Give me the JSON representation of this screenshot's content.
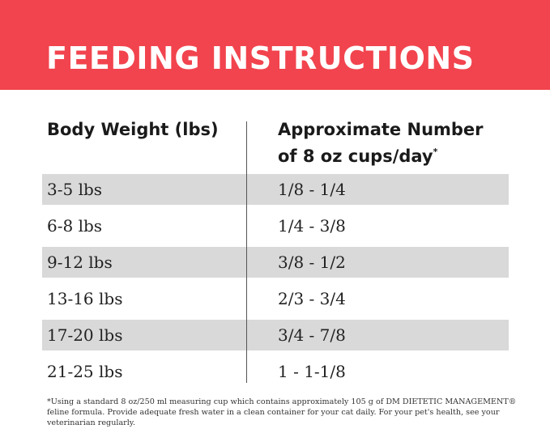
{
  "header": {
    "title": "FEEDING INSTRUCTIONS"
  },
  "table": {
    "columns": [
      {
        "lines": [
          "Body Weight (lbs)"
        ]
      },
      {
        "lines": [
          "Approximate Number",
          "of 8 oz cups/day"
        ],
        "note_mark": "*"
      }
    ],
    "rows": [
      [
        "3-5 lbs",
        "1/8 - 1/4"
      ],
      [
        "6-8 lbs",
        "1/4 - 3/8"
      ],
      [
        "9-12 lbs",
        "3/8 - 1/2"
      ],
      [
        "13-16 lbs",
        "2/3 - 3/4"
      ],
      [
        "17-20 lbs",
        "3/4 - 7/8"
      ],
      [
        "21-25 lbs",
        "1 - 1-1/8"
      ]
    ]
  },
  "footnote": "*Using a standard 8 oz/250 ml measuring cup which contains approximately 105 g of DM DIETETIC MANAGEMENT® feline formula. Provide adequate fresh water in a clean container for your cat daily. For your pet's health, see your veterinarian regularly."
}
